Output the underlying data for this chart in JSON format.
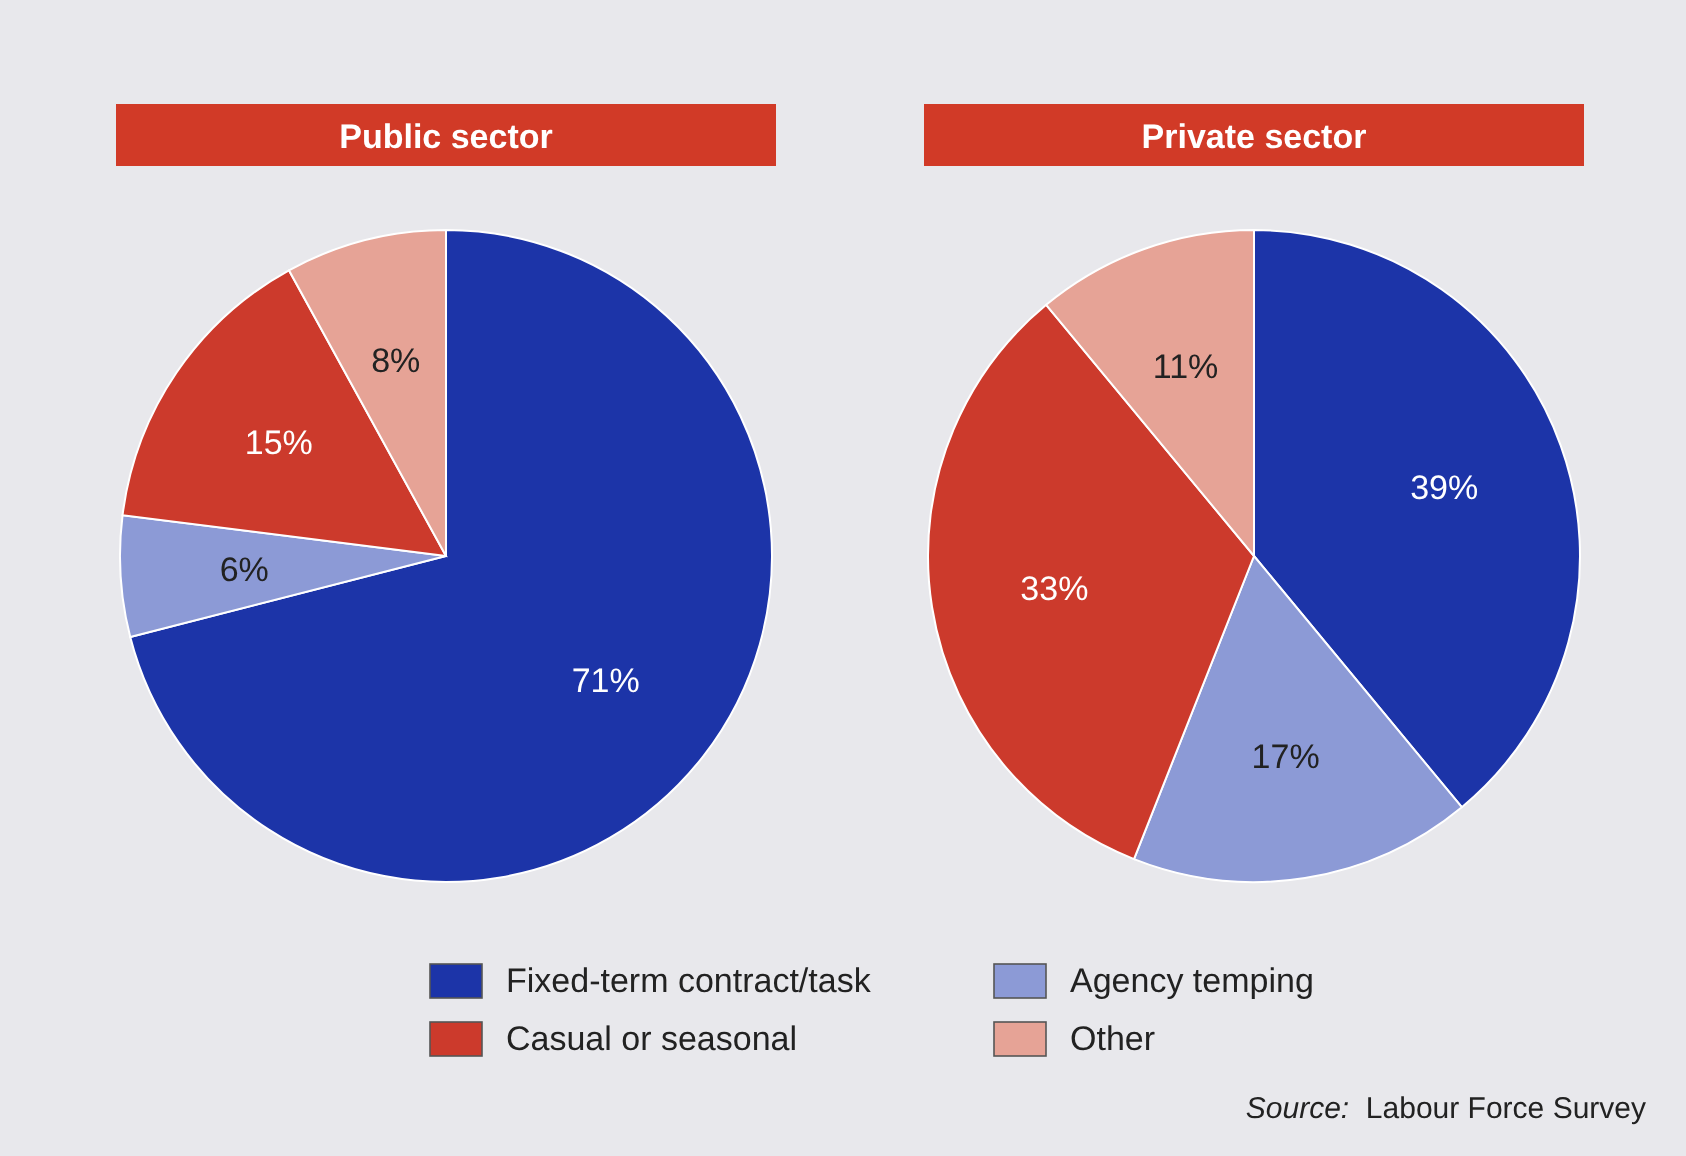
{
  "chart_data": [
    {
      "type": "pie",
      "title": "Public sector",
      "categories": [
        "Fixed-term contract/task",
        "Agency temping",
        "Casual or seasonal",
        "Other"
      ],
      "values": [
        71,
        6,
        15,
        8
      ],
      "value_labels": [
        "71%",
        "6%",
        "15%",
        "8%"
      ],
      "colors": [
        "#1c34a8",
        "#8c9ad6",
        "#cc3a2c",
        "#e6a396"
      ],
      "legend": "bottom"
    },
    {
      "type": "pie",
      "title": "Private sector",
      "values": [
        39,
        17,
        33,
        11
      ],
      "value_labels": [
        "39%",
        "17%",
        "33%",
        "11%"
      ],
      "colors": [
        "#1c34a8",
        "#8c9ad6",
        "#cc3a2c",
        "#e6a396"
      ],
      "annotations": [
        "Source:  Labour Force Survey"
      ]
    }
  ]
}
